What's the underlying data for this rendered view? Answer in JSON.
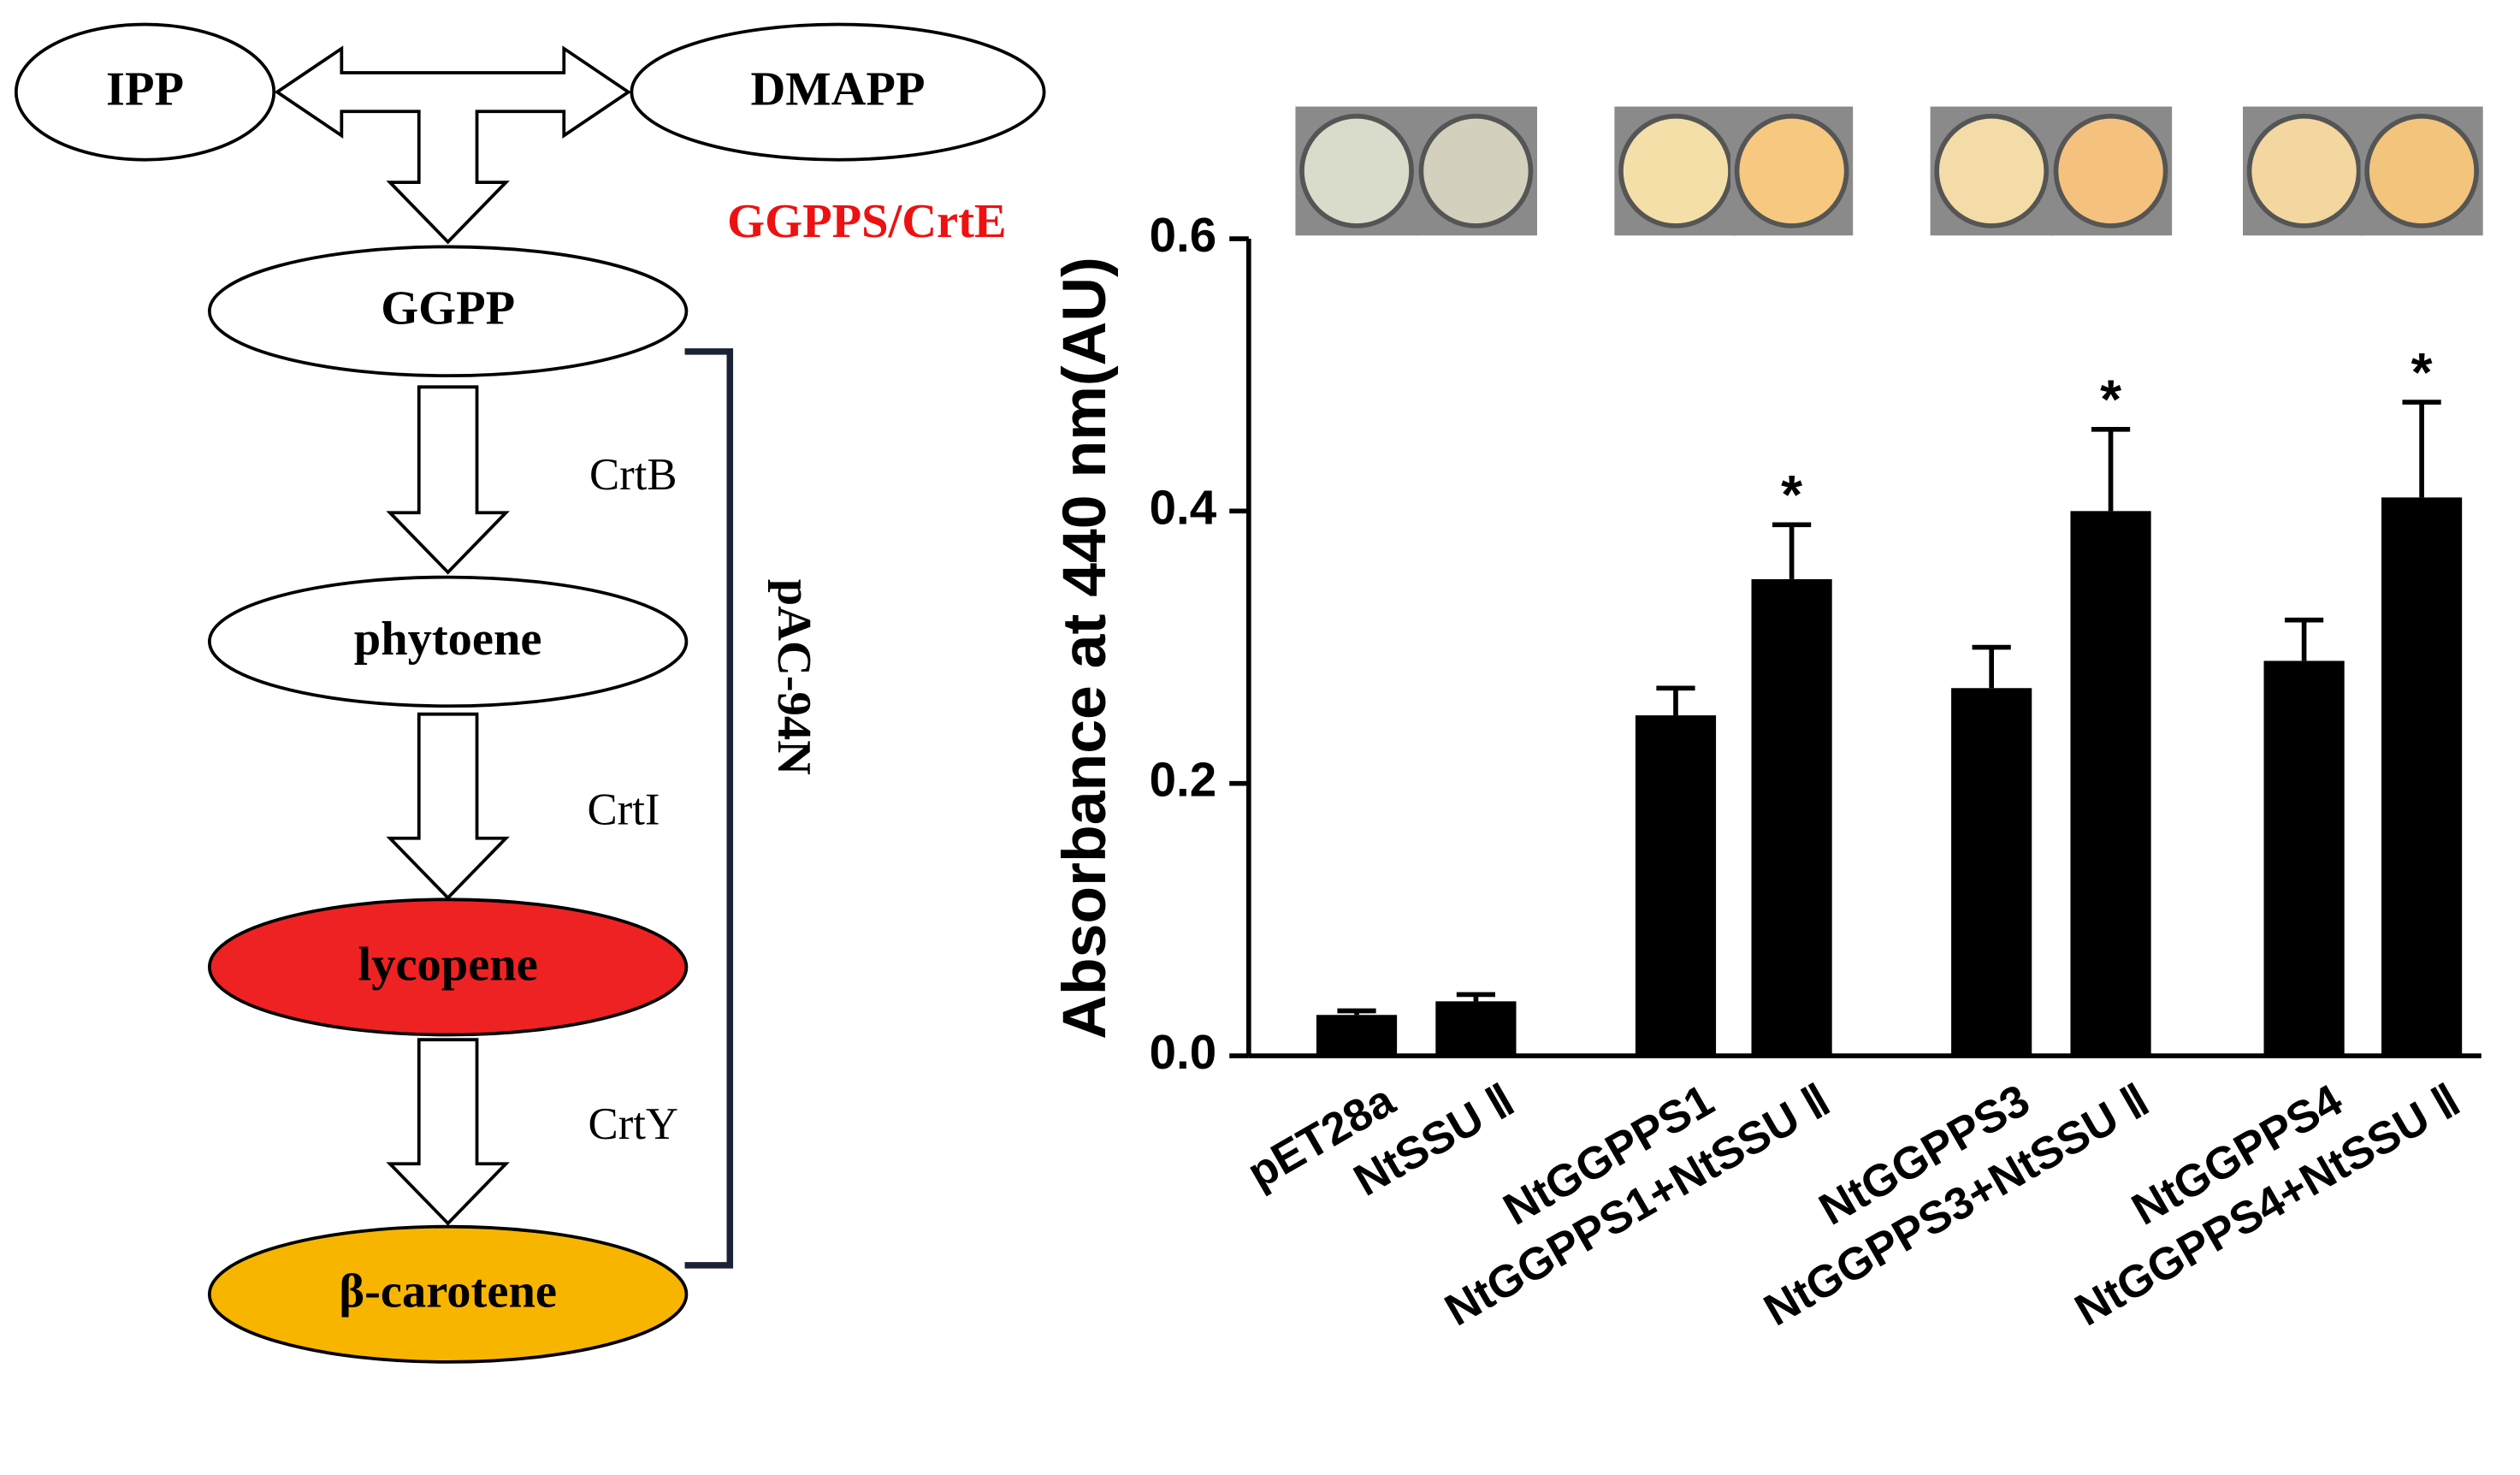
{
  "diagram": {
    "nodes": [
      {
        "label": "IPP"
      },
      {
        "label": "DMAPP"
      },
      {
        "label": "GGPP"
      },
      {
        "label": "phytoene"
      },
      {
        "label": "lycopene"
      },
      {
        "label": "β-carotene"
      }
    ],
    "enzymes": [
      "GGPPS/CrtE",
      "CrtB",
      "CrtI",
      "CrtY"
    ],
    "bracket_label": "pAC-94N"
  },
  "chart_data": {
    "type": "bar",
    "y_label": "Absorbance at 440 nm(AU)",
    "categories": [
      "pET28a",
      "NtSSU Ⅱ",
      "NtGGPPS1",
      "NtGGPPS1+NtSSU Ⅱ",
      "NtGGPPS3",
      "NtGGPPS3+NtSSU Ⅱ",
      "NtGGPPS4",
      "NtGGPPS4+NtSSU Ⅱ"
    ],
    "values": [
      0.03,
      0.04,
      0.25,
      0.35,
      0.27,
      0.4,
      0.29,
      0.41
    ],
    "errors": [
      0.003,
      0.005,
      0.02,
      0.04,
      0.03,
      0.06,
      0.03,
      0.07
    ],
    "significance": [
      null,
      null,
      null,
      "*",
      null,
      "*",
      null,
      "*"
    ],
    "color": "#000000",
    "ylim": [
      0,
      0.6
    ],
    "yticks": [
      {
        "value": 0,
        "label": "0.0"
      },
      0.2,
      0.4,
      0.6
    ]
  }
}
